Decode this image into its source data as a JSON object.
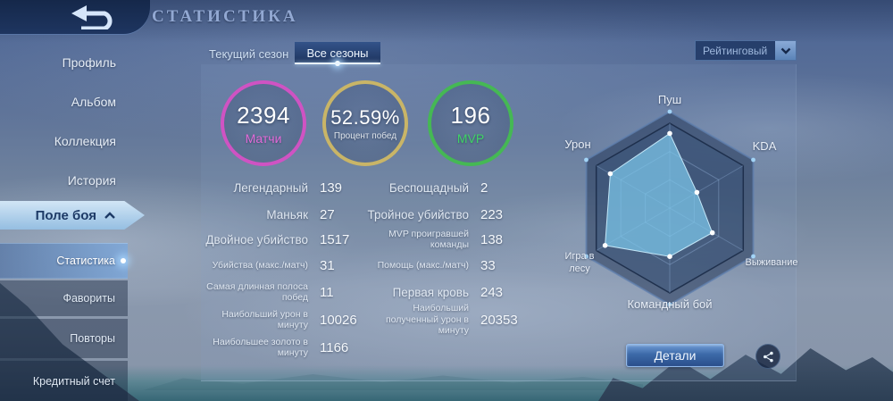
{
  "header": {
    "title": "СТАТИСТИКА"
  },
  "icons": {
    "back": "back-arrow-icon",
    "battlefield_expand": "chevron-up-icon",
    "dropdown": "chevron-down-icon",
    "share": "share-icon"
  },
  "sidebar": {
    "items": [
      {
        "label": "Профиль"
      },
      {
        "label": "Альбом"
      },
      {
        "label": "Коллекция"
      },
      {
        "label": "История"
      },
      {
        "label": "Поле боя",
        "expanded": true
      },
      {
        "label": "Статистика",
        "selected": true
      },
      {
        "label": "Фавориты"
      },
      {
        "label": "Повторы"
      },
      {
        "label": "Кредитный счет"
      }
    ]
  },
  "tabs": [
    {
      "label": "Текущий сезон",
      "active": false
    },
    {
      "label": "Все сезоны",
      "active": true
    }
  ],
  "filter_dropdown": {
    "value": "Рейтинговый"
  },
  "summary_circles": [
    {
      "value": "2394",
      "label": "Матчи",
      "ring_color": "#cf53c3",
      "label_color": "#e36ad8"
    },
    {
      "value": "52.59%",
      "label": "Процент побед",
      "ring_color": "#c9b567",
      "label_color": "#dde3ea"
    },
    {
      "value": "196",
      "label": "MVP",
      "ring_color": "#45b854",
      "label_color": "#3fd465"
    }
  ],
  "stats": {
    "left": [
      {
        "label": "Легендарный",
        "value": "139",
        "size": "big"
      },
      {
        "label": "Маньяк",
        "value": "27",
        "size": "big"
      },
      {
        "label": "Двойное убийство",
        "value": "1517",
        "size": "big"
      },
      {
        "label": "Убийства (макс./матч)",
        "value": "31",
        "size": "small"
      },
      {
        "label": "Самая длинная полоса побед",
        "value": "11",
        "size": "small"
      },
      {
        "label": "Наибольший урон в минуту",
        "value": "10026",
        "size": "small"
      },
      {
        "label": "Наибольшее золото в минуту",
        "value": "1166",
        "size": "small"
      }
    ],
    "right": [
      {
        "label": "Беспощадный",
        "value": "2",
        "size": "big"
      },
      {
        "label": "Тройное убийство",
        "value": "223",
        "size": "big"
      },
      {
        "label": "MVP проигравшей команды",
        "value": "138",
        "size": "small"
      },
      {
        "label": "Помощь (макс./матч)",
        "value": "33",
        "size": "small"
      },
      {
        "label": "Первая кровь",
        "value": "243",
        "size": "big"
      },
      {
        "label": "Наибольший полученный урон в минуту",
        "value": "20353",
        "size": "small"
      }
    ]
  },
  "chart_data": {
    "type": "radar",
    "axes": [
      "Пуш",
      "KDA",
      "Выживание",
      "Командный бой",
      "Игра в лесу",
      "Урон"
    ],
    "values": [
      88,
      37,
      58,
      57,
      88,
      81
    ],
    "max": 100,
    "note": "axis scale unlabeled; values estimated from polygon geometry as % of full radius",
    "levels": 3,
    "legend": "none",
    "fill_color": "#7dc8eb",
    "grid_color": "#96aed2",
    "rim_color": "#1c3052"
  },
  "actions": {
    "details_label": "Детали"
  }
}
